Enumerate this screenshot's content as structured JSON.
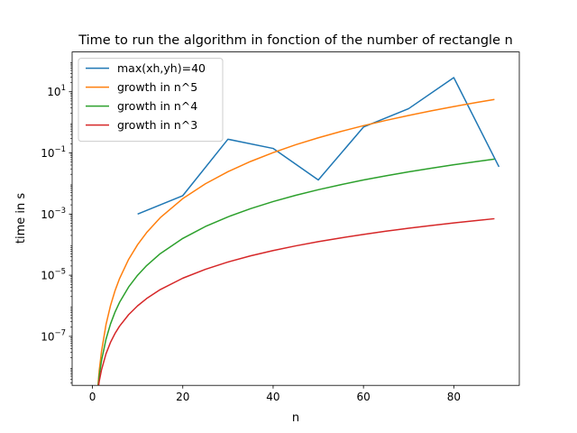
{
  "chart_data": {
    "type": "line",
    "title": "Time to run the algorithm in fonction of the number of rectangle n",
    "xlabel": "n",
    "ylabel": "time in s",
    "xlim": [
      -4.5,
      94.5
    ],
    "ylim": [
      2.5e-09,
      200
    ],
    "yscale": "log",
    "xticks": [
      0,
      20,
      40,
      60,
      80
    ],
    "yticks": [
      {
        "value": 1e-07,
        "base": "10",
        "exp": "−7"
      },
      {
        "value": 1e-05,
        "base": "10",
        "exp": "−5"
      },
      {
        "value": 0.001,
        "base": "10",
        "exp": "−3"
      },
      {
        "value": 0.1,
        "base": "10",
        "exp": "−1"
      },
      {
        "value": 10,
        "base": "10",
        "exp": "1"
      }
    ],
    "grid": false,
    "legend_position": "top-left",
    "series": [
      {
        "name": "max(xh,yh)=40",
        "color": "#1f77b4",
        "x": [
          10,
          20,
          30,
          40,
          50,
          60,
          70,
          80,
          90
        ],
        "y": [
          0.001,
          0.004,
          0.28,
          0.14,
          0.013,
          0.7,
          2.8,
          29,
          0.035
        ]
      },
      {
        "name": "growth in n^5",
        "color": "#ff7f0e",
        "x": [
          1,
          1.5,
          2,
          3,
          4,
          5,
          6,
          8,
          10,
          12,
          15,
          20,
          25,
          30,
          35,
          40,
          45,
          50,
          55,
          60,
          65,
          70,
          75,
          80,
          85,
          89
        ],
        "y": [
          1e-09,
          7.6e-09,
          3.2e-08,
          2.43e-07,
          1.02e-06,
          3.13e-06,
          7.78e-06,
          3.28e-05,
          0.0001,
          0.000249,
          0.000759,
          0.0032,
          0.00977,
          0.0243,
          0.0525,
          0.102,
          0.185,
          0.3125,
          0.503,
          0.778,
          1.16,
          1.68,
          2.37,
          3.28,
          4.44,
          5.58
        ]
      },
      {
        "name": "growth in n^4",
        "color": "#2ca02c",
        "x": [
          1,
          1.5,
          2,
          3,
          4,
          5,
          6,
          8,
          10,
          12,
          15,
          20,
          25,
          30,
          35,
          40,
          45,
          50,
          55,
          60,
          65,
          70,
          75,
          80,
          85,
          89
        ],
        "y": [
          1e-09,
          5.1e-09,
          1.6e-08,
          8.1e-08,
          2.56e-07,
          6.25e-07,
          1.3e-06,
          4.1e-06,
          1e-05,
          2.07e-05,
          5.06e-05,
          0.00016,
          0.000391,
          0.00081,
          0.0015,
          0.00256,
          0.0041,
          0.00625,
          0.00915,
          0.013,
          0.0179,
          0.024,
          0.0316,
          0.041,
          0.0522,
          0.0627
        ]
      },
      {
        "name": "growth in n^3",
        "color": "#d62728",
        "x": [
          1,
          1.5,
          2,
          3,
          4,
          5,
          6,
          8,
          10,
          12,
          15,
          20,
          25,
          30,
          35,
          40,
          45,
          50,
          55,
          60,
          65,
          70,
          75,
          80,
          85,
          89
        ],
        "y": [
          1e-09,
          3.4e-09,
          8e-09,
          2.7e-08,
          6.4e-08,
          1.25e-07,
          2.16e-07,
          5.12e-07,
          1e-06,
          1.73e-06,
          3.38e-06,
          8e-06,
          1.56e-05,
          2.7e-05,
          4.29e-05,
          6.4e-05,
          9.11e-05,
          0.000125,
          0.000166,
          0.000216,
          0.000275,
          0.000343,
          0.000422,
          0.000512,
          0.000614,
          0.000705
        ]
      }
    ]
  }
}
